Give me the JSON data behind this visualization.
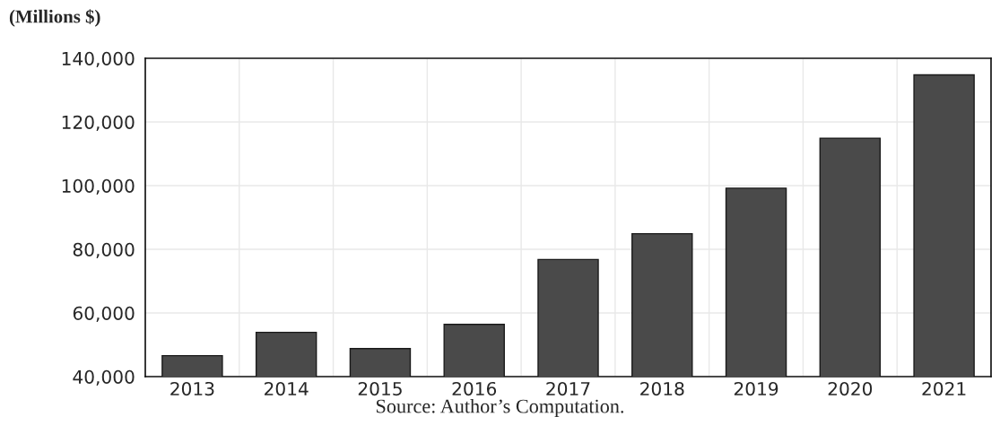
{
  "chart_data": {
    "type": "bar",
    "title": "(Millions $)",
    "categories": [
      "2013",
      "2014",
      "2015",
      "2016",
      "2017",
      "2018",
      "2019",
      "2020",
      "2021"
    ],
    "values": [
      46600,
      53900,
      48800,
      56400,
      76800,
      84900,
      99200,
      114900,
      134800
    ],
    "color": "#4a4a4a",
    "ylim": [
      40000,
      140000
    ],
    "yticks": [
      {
        "value": 40000,
        "label": "40,000"
      },
      {
        "value": 60000,
        "label": "60,000"
      },
      {
        "value": 80000,
        "label": "80,000"
      },
      {
        "value": 100000,
        "label": "100,000"
      },
      {
        "value": 120000,
        "label": "120,000"
      },
      {
        "value": 140000,
        "label": "140,000"
      }
    ],
    "grid": true,
    "annotations": [
      "Source: Author’s Computation."
    ]
  }
}
